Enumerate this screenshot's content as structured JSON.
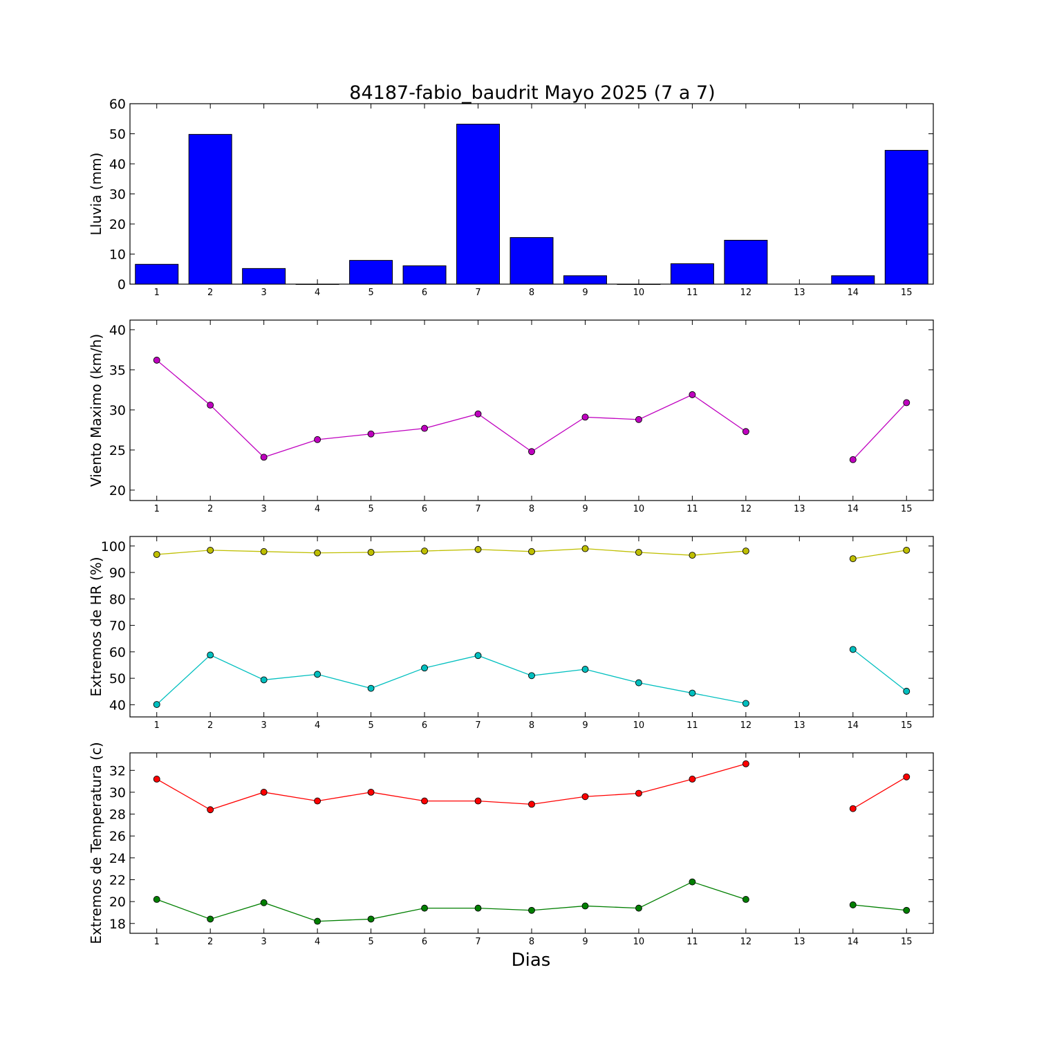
{
  "chart_data": {
    "type": "multi-panel",
    "title": "84187-fabio_baudrit Mayo 2025  (7 a 7)",
    "xlabel": "Dias",
    "x": [
      1,
      2,
      3,
      4,
      5,
      6,
      7,
      8,
      9,
      10,
      11,
      12,
      13,
      14,
      15
    ],
    "panels": [
      {
        "type": "bar",
        "ylabel": "Lluvia (mm)",
        "ylim": [
          0,
          60
        ],
        "yticks": [
          0,
          10,
          20,
          30,
          40,
          50,
          60
        ],
        "series": [
          {
            "values": [
              6.6,
              49.8,
              5.2,
              0,
              7.9,
              6.1,
              53.2,
              15.5,
              2.8,
              0,
              6.8,
              14.6,
              null,
              2.8,
              44.5
            ],
            "color": "#0000ff"
          }
        ]
      },
      {
        "type": "line",
        "ylabel": "Viento Maximo (km/h)",
        "ylim": [
          18.7,
          41.2
        ],
        "yticks": [
          20,
          25,
          30,
          35,
          40
        ],
        "series": [
          {
            "values": [
              36.2,
              30.6,
              24.1,
              26.3,
              27.0,
              27.7,
              29.5,
              24.8,
              29.1,
              28.8,
              31.9,
              27.3,
              null,
              23.8,
              30.9
            ],
            "color": "#bf00bf"
          }
        ]
      },
      {
        "type": "line",
        "ylabel": "Extremos de HR (%)",
        "ylim": [
          35.4,
          103.6
        ],
        "yticks": [
          40,
          50,
          60,
          70,
          80,
          90,
          100
        ],
        "series": [
          {
            "values": [
              96.8,
              98.4,
              97.9,
              97.4,
              97.6,
              98.1,
              98.7,
              97.9,
              99.0,
              97.6,
              96.5,
              98.1,
              null,
              95.2,
              98.4
            ],
            "color": "#bfbf00"
          },
          {
            "values": [
              40.1,
              58.8,
              49.4,
              51.5,
              46.2,
              53.9,
              58.6,
              51.0,
              53.4,
              48.3,
              44.4,
              40.5,
              null,
              60.9,
              45.1
            ],
            "color": "#00bfbf"
          }
        ]
      },
      {
        "type": "line",
        "ylabel": "Extremos de Temperatura (c)",
        "ylim": [
          17.1,
          33.6
        ],
        "yticks": [
          18,
          20,
          22,
          24,
          26,
          28,
          30,
          32
        ],
        "series": [
          {
            "values": [
              31.2,
              28.4,
              30.0,
              29.2,
              30.0,
              29.2,
              29.2,
              28.9,
              29.6,
              29.9,
              31.2,
              32.6,
              null,
              28.5,
              31.4
            ],
            "color": "#ff0000"
          },
          {
            "values": [
              20.2,
              18.4,
              19.9,
              18.2,
              18.4,
              19.4,
              19.4,
              19.2,
              19.6,
              19.4,
              21.8,
              20.2,
              null,
              19.7,
              19.2
            ],
            "color": "#007f00"
          }
        ]
      }
    ]
  }
}
